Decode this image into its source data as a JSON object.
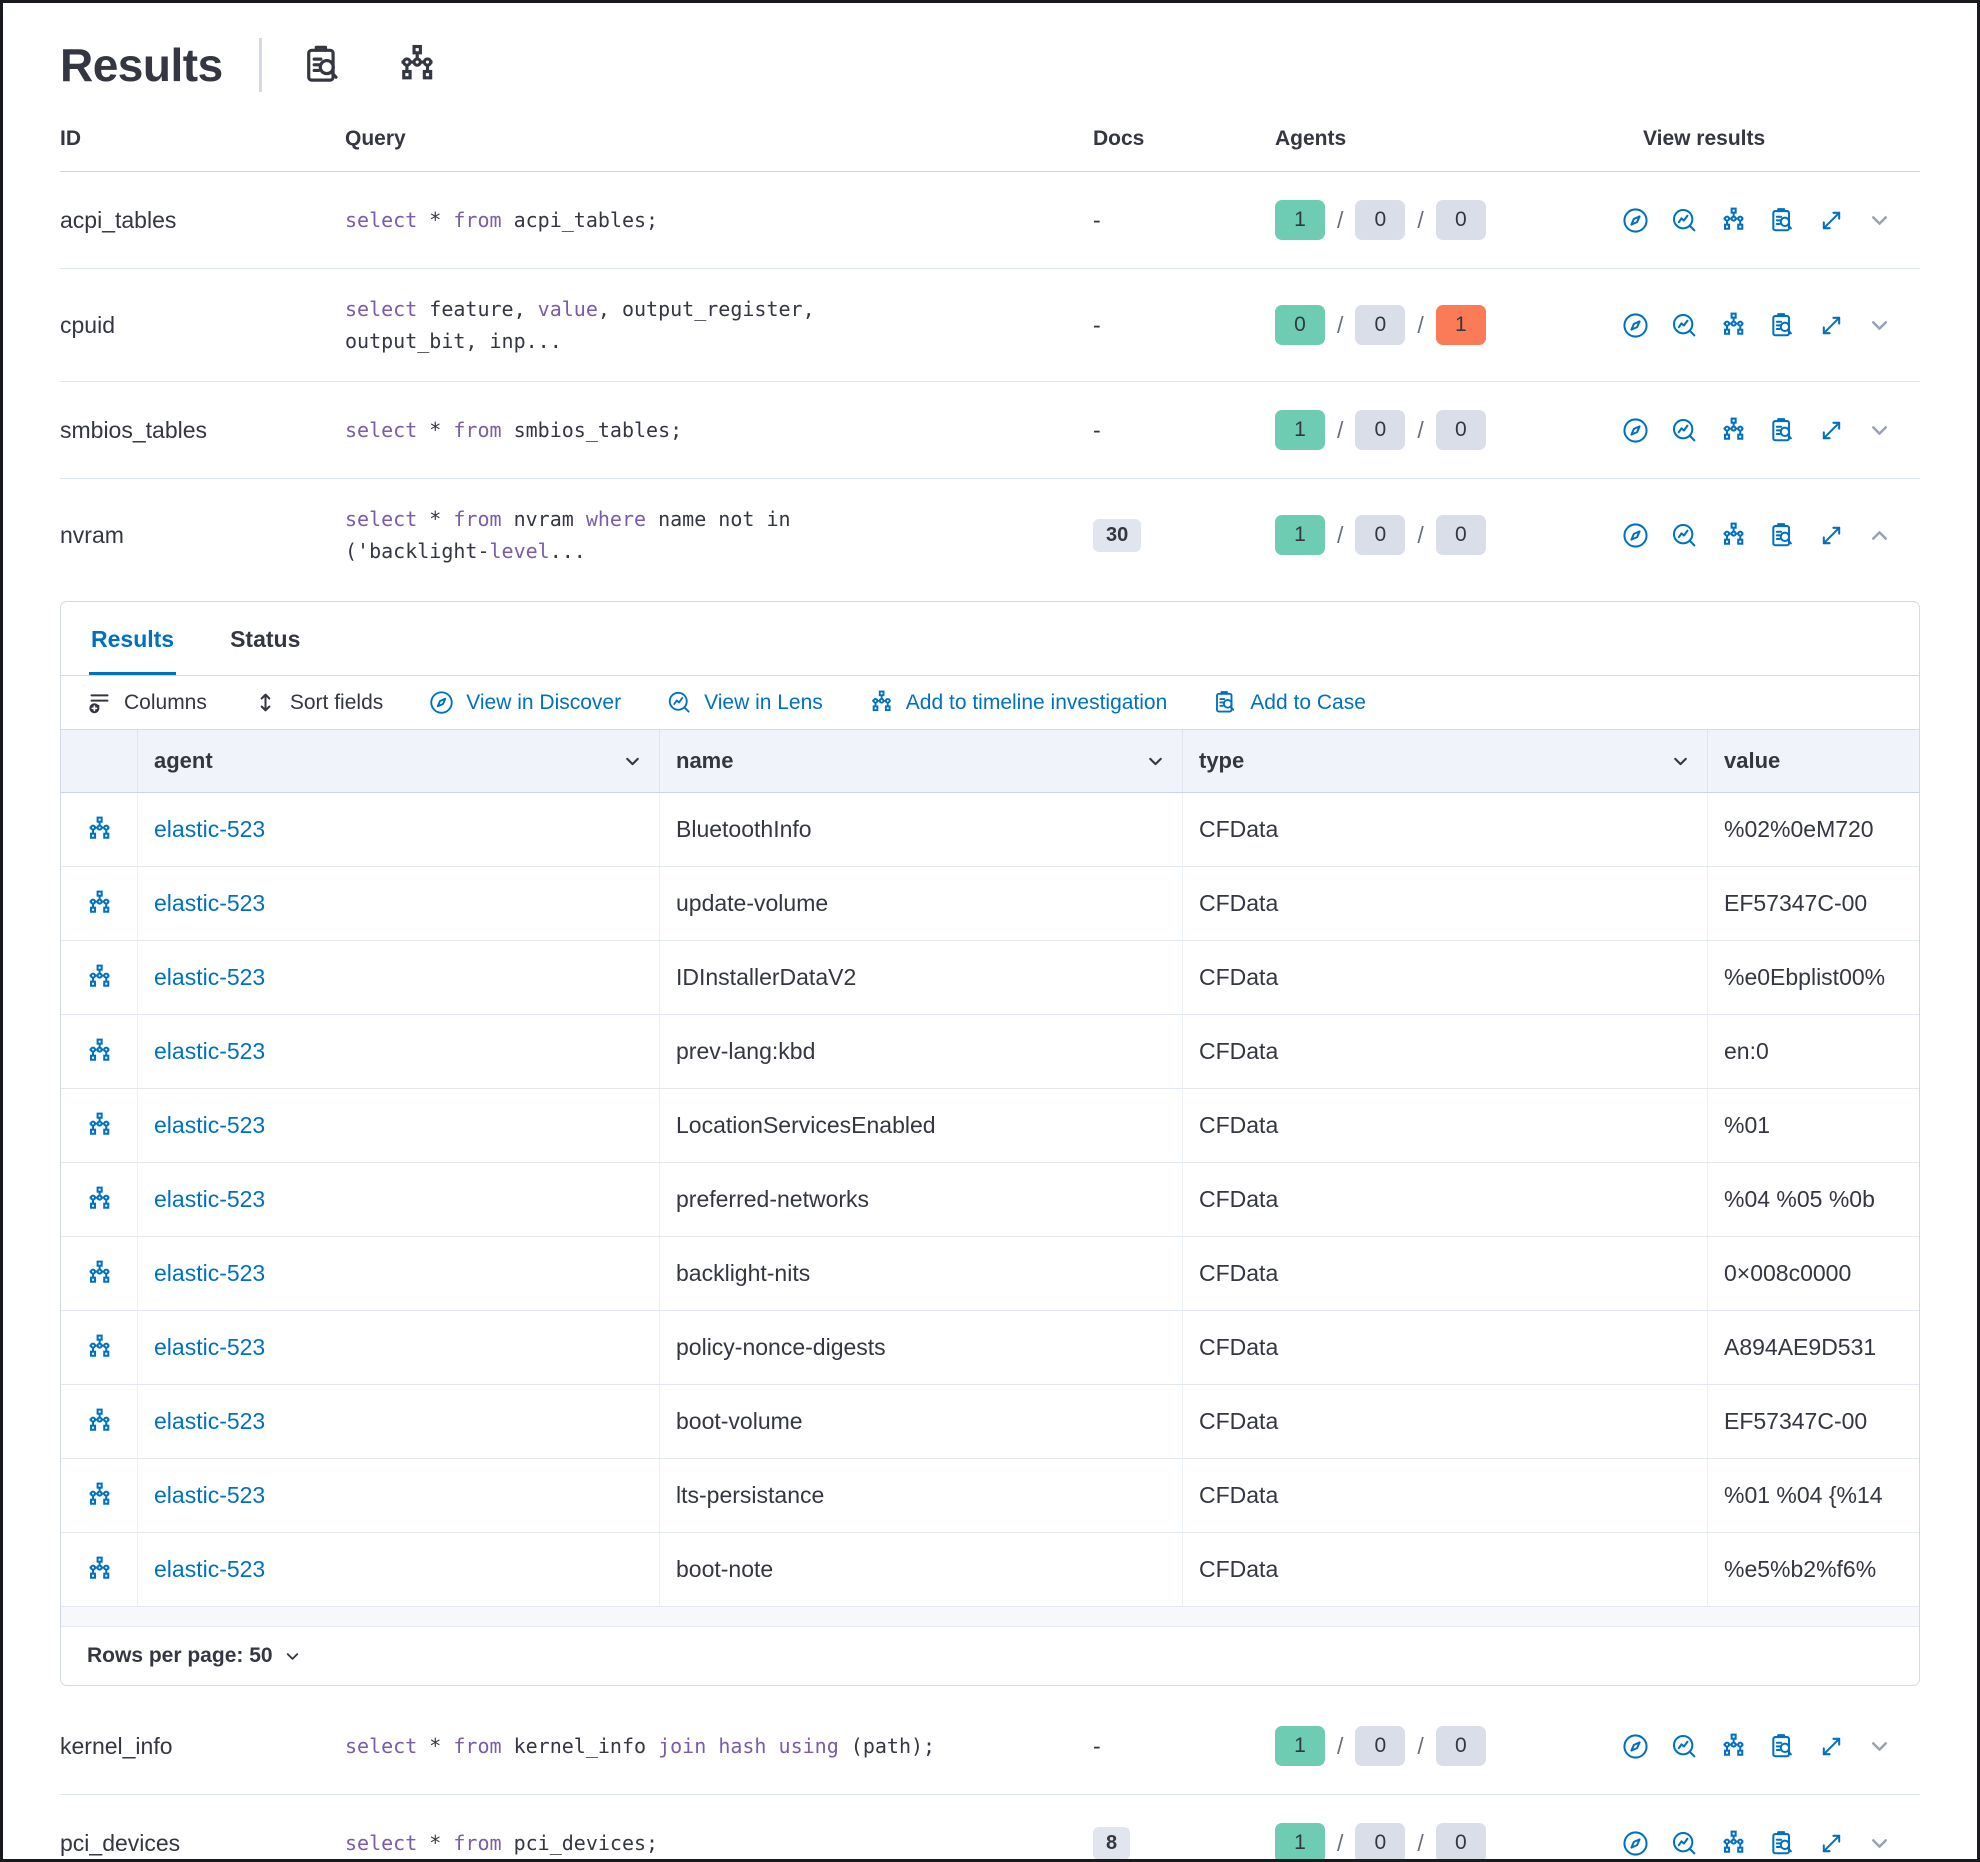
{
  "header": {
    "title": "Results",
    "icons": [
      "inspect",
      "timeline"
    ]
  },
  "colors": {
    "primary_blue": "#0071c2",
    "text": "#343741",
    "subdued": "#69707d",
    "success_badge": "#6dccb1",
    "default_badge": "#d9dee8",
    "danger_badge": "#fb7a58",
    "code_keyword": "#7a5ca8",
    "border": "#d3dae6",
    "grid_header_bg": "#f0f3fa"
  },
  "query_table": {
    "headers": {
      "id": "ID",
      "query": "Query",
      "docs": "Docs",
      "agents": "Agents",
      "view": "View results"
    },
    "view_actions": [
      "discover",
      "lens",
      "timeline",
      "case",
      "expand"
    ],
    "rows": [
      {
        "id": "acpi_tables",
        "query": [
          {
            "t": "select",
            "k": true
          },
          {
            "t": " * "
          },
          {
            "t": "from",
            "k": true
          },
          {
            "t": " acpi_tables;"
          }
        ],
        "docs": "-",
        "docs_badge": false,
        "twoline": false,
        "expanded": false,
        "agents": [
          {
            "v": "1",
            "c": "success"
          },
          {
            "v": "0",
            "c": "default"
          },
          {
            "v": "0",
            "c": "default"
          }
        ]
      },
      {
        "id": "cpuid",
        "query": [
          {
            "t": "select",
            "k": true
          },
          {
            "t": " feature, "
          },
          {
            "t": "value",
            "k": true
          },
          {
            "t": ", output_register,\noutput_bit, inp..."
          }
        ],
        "docs": "-",
        "docs_badge": false,
        "twoline": true,
        "expanded": false,
        "agents": [
          {
            "v": "0",
            "c": "success"
          },
          {
            "v": "0",
            "c": "default"
          },
          {
            "v": "1",
            "c": "danger"
          }
        ]
      },
      {
        "id": "smbios_tables",
        "query": [
          {
            "t": "select",
            "k": true
          },
          {
            "t": " * "
          },
          {
            "t": "from",
            "k": true
          },
          {
            "t": " smbios_tables;"
          }
        ],
        "docs": "-",
        "docs_badge": false,
        "twoline": false,
        "expanded": false,
        "agents": [
          {
            "v": "1",
            "c": "success"
          },
          {
            "v": "0",
            "c": "default"
          },
          {
            "v": "0",
            "c": "default"
          }
        ]
      },
      {
        "id": "nvram",
        "query": [
          {
            "t": "select",
            "k": true
          },
          {
            "t": " * "
          },
          {
            "t": "from",
            "k": true
          },
          {
            "t": " nvram "
          },
          {
            "t": "where",
            "k": true
          },
          {
            "t": " name not in\n('backlight-"
          },
          {
            "t": "level",
            "k": true
          },
          {
            "t": "..."
          }
        ],
        "docs": "30",
        "docs_badge": true,
        "twoline": true,
        "expanded": true,
        "agents": [
          {
            "v": "1",
            "c": "success"
          },
          {
            "v": "0",
            "c": "default"
          },
          {
            "v": "0",
            "c": "default"
          }
        ]
      },
      {
        "id": "kernel_info",
        "query": [
          {
            "t": "select",
            "k": true
          },
          {
            "t": " * "
          },
          {
            "t": "from",
            "k": true
          },
          {
            "t": " kernel_info "
          },
          {
            "t": "join",
            "k": true
          },
          {
            "t": " "
          },
          {
            "t": "hash",
            "k": true
          },
          {
            "t": " "
          },
          {
            "t": "using",
            "k": true
          },
          {
            "t": " (path);"
          }
        ],
        "docs": "-",
        "docs_badge": false,
        "twoline": false,
        "expanded": false,
        "agents": [
          {
            "v": "1",
            "c": "success"
          },
          {
            "v": "0",
            "c": "default"
          },
          {
            "v": "0",
            "c": "default"
          }
        ]
      },
      {
        "id": "pci_devices",
        "query": [
          {
            "t": "select",
            "k": true
          },
          {
            "t": " * "
          },
          {
            "t": "from",
            "k": true
          },
          {
            "t": " pci_devices;"
          }
        ],
        "docs": "8",
        "docs_badge": true,
        "twoline": false,
        "expanded": false,
        "agents": [
          {
            "v": "1",
            "c": "success"
          },
          {
            "v": "0",
            "c": "default"
          },
          {
            "v": "0",
            "c": "default"
          }
        ]
      }
    ]
  },
  "panel": {
    "tabs": [
      {
        "label": "Results",
        "active": true
      },
      {
        "label": "Status",
        "active": false
      }
    ],
    "toolbar": [
      {
        "label": "Columns",
        "icon": "columns",
        "style": "dark"
      },
      {
        "label": "Sort fields",
        "icon": "sort",
        "style": "dark"
      },
      {
        "label": "View in Discover",
        "icon": "discover",
        "style": "blue"
      },
      {
        "label": "View in Lens",
        "icon": "lens",
        "style": "blue"
      },
      {
        "label": "Add to timeline investigation",
        "icon": "timeline",
        "style": "blue"
      },
      {
        "label": "Add to Case",
        "icon": "case",
        "style": "blue"
      }
    ],
    "grid": {
      "columns": [
        {
          "label": "agent",
          "sortable": true
        },
        {
          "label": "name",
          "sortable": true
        },
        {
          "label": "type",
          "sortable": true
        },
        {
          "label": "value",
          "sortable": false
        }
      ],
      "rows": [
        {
          "agent": "elastic-523",
          "name": "BluetoothInfo",
          "type": "CFData",
          "value": "%02%0eM720"
        },
        {
          "agent": "elastic-523",
          "name": "update-volume",
          "type": "CFData",
          "value": "EF57347C-00"
        },
        {
          "agent": "elastic-523",
          "name": "IDInstallerDataV2",
          "type": "CFData",
          "value": "%e0Ebplist00%"
        },
        {
          "agent": "elastic-523",
          "name": "prev-lang:kbd",
          "type": "CFData",
          "value": "en:0"
        },
        {
          "agent": "elastic-523",
          "name": "LocationServicesEnabled",
          "type": "CFData",
          "value": "%01"
        },
        {
          "agent": "elastic-523",
          "name": "preferred-networks",
          "type": "CFData",
          "value": "%04 %05 %0b"
        },
        {
          "agent": "elastic-523",
          "name": "backlight-nits",
          "type": "CFData",
          "value": "0×008c0000"
        },
        {
          "agent": "elastic-523",
          "name": "policy-nonce-digests",
          "type": "CFData",
          "value": "A894AE9D531"
        },
        {
          "agent": "elastic-523",
          "name": "boot-volume",
          "type": "CFData",
          "value": "EF57347C-00"
        },
        {
          "agent": "elastic-523",
          "name": "lts-persistance",
          "type": "CFData",
          "value": "%01 %04 {%14"
        },
        {
          "agent": "elastic-523",
          "name": "boot-note",
          "type": "CFData",
          "value": "%e5%b2%f6%"
        }
      ],
      "rows_per_page_label": "Rows per page: 50"
    }
  }
}
